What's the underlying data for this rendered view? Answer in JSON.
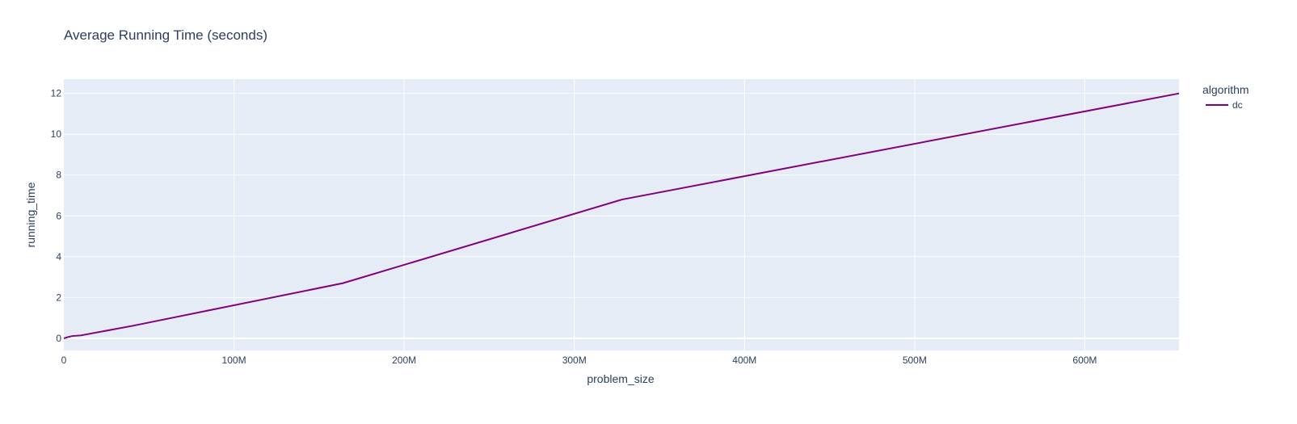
{
  "chart_data": {
    "type": "line",
    "title": "Average Running Time (seconds)",
    "xlabel": "problem_size",
    "ylabel": "running_time",
    "xlim": [
      0,
      655360000
    ],
    "ylim": [
      -0.6,
      12.7
    ],
    "x_ticks": [
      {
        "value": 0,
        "label": "0"
      },
      {
        "value": 100000000,
        "label": "100M"
      },
      {
        "value": 200000000,
        "label": "200M"
      },
      {
        "value": 300000000,
        "label": "300M"
      },
      {
        "value": 400000000,
        "label": "400M"
      },
      {
        "value": 500000000,
        "label": "500M"
      },
      {
        "value": 600000000,
        "label": "600M"
      }
    ],
    "y_ticks": [
      {
        "value": 0,
        "label": "0"
      },
      {
        "value": 2,
        "label": "2"
      },
      {
        "value": 4,
        "label": "4"
      },
      {
        "value": 6,
        "label": "6"
      },
      {
        "value": 8,
        "label": "8"
      },
      {
        "value": 10,
        "label": "10"
      },
      {
        "value": 12,
        "label": "12"
      }
    ],
    "grid": true,
    "legend": {
      "title": "algorithm",
      "position": "top-right"
    },
    "series": [
      {
        "name": "dc",
        "color": "#800080",
        "x": [
          0,
          1000000,
          2000000,
          5000000,
          10000000,
          41000000,
          164000000,
          328000000,
          655360000
        ],
        "y": [
          0.0,
          0.02,
          0.05,
          0.11,
          0.14,
          0.62,
          2.7,
          6.8,
          12.0
        ]
      }
    ]
  },
  "colors": {
    "plot_background": "#e5ecf6",
    "grid": "#ffffff",
    "text": "#2a3f5f"
  }
}
